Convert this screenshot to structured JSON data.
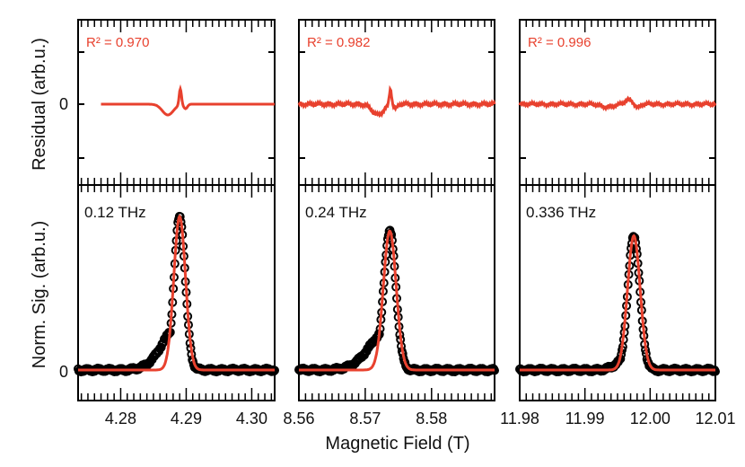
{
  "xlabel": "Magnetic Field (T)",
  "ylabel_top": "Residual (arb.u.)",
  "ylabel_bottom": "Norm. Sig. (arb.u.)",
  "y_zero_label": "0",
  "colors": {
    "fit": "#e8412e",
    "data": "#000000"
  },
  "chart_data": [
    {
      "type": "line",
      "panel": "0.12 THz",
      "frequency_label": "0.12 THz",
      "r2_label": "R² = 0.970",
      "r2": 0.97,
      "xlim": [
        4.2735,
        4.3035
      ],
      "xticks": [
        4.28,
        4.29,
        4.3
      ],
      "xtick_labels": [
        "4.28",
        "4.29",
        "4.30"
      ],
      "center": 4.289,
      "width": 0.0012,
      "left_tail": 0.0035,
      "tail_amp": 0.3,
      "peak_height": 0.95,
      "residual_shape": "dip-then-spike"
    },
    {
      "type": "line",
      "panel": "0.24 THz",
      "frequency_label": "0.24 THz",
      "r2_label": "R² = 0.982",
      "r2": 0.982,
      "xlim": [
        8.56,
        8.5895
      ],
      "xticks": [
        8.56,
        8.57,
        8.58
      ],
      "xtick_labels": [
        "8.56",
        "8.57",
        "8.58"
      ],
      "center": 8.5737,
      "width": 0.0013,
      "left_tail": 0.004,
      "tail_amp": 0.3,
      "peak_height": 0.86,
      "residual_shape": "dip-then-spike"
    },
    {
      "type": "line",
      "panel": "0.336 THz",
      "frequency_label": "0.336 THz",
      "r2_label": "R² = 0.996",
      "r2": 0.996,
      "xlim": [
        11.98,
        12.01
      ],
      "xticks": [
        11.98,
        11.99,
        12.0,
        12.01
      ],
      "xtick_labels": [
        "11.98",
        "11.99",
        "12.00",
        "12.01"
      ],
      "center": 11.9975,
      "width": 0.0013,
      "left_tail": 0.0025,
      "tail_amp": 0.15,
      "peak_height": 0.83,
      "residual_shape": "small-wiggle"
    }
  ]
}
